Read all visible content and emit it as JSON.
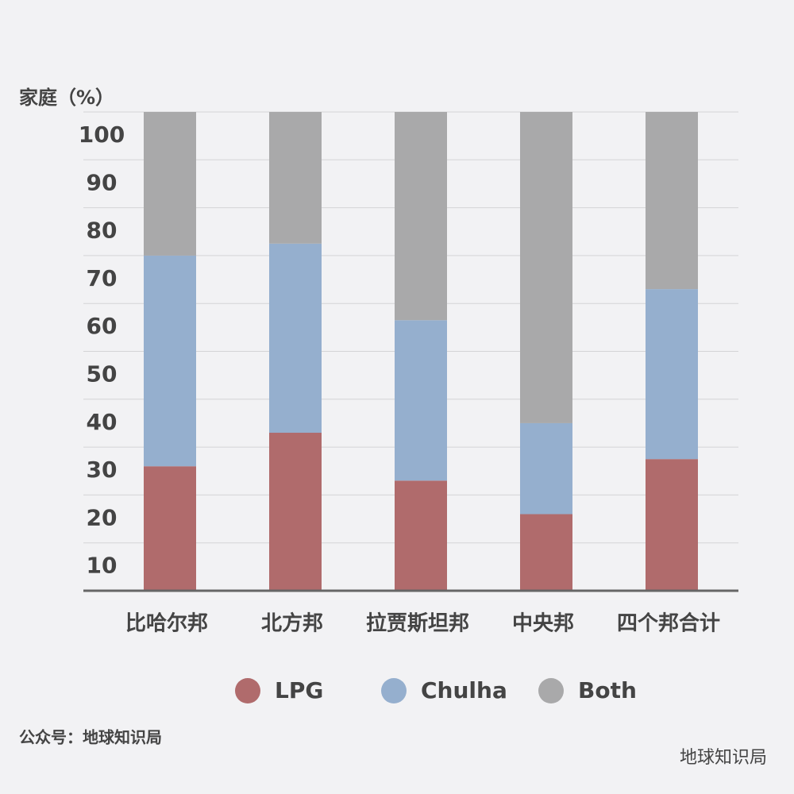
{
  "chart_data": {
    "type": "stacked_bar",
    "y_label": "家庭（%）",
    "categories": [
      "比哈尔邦",
      "北方邦",
      "拉贾斯坦邦",
      "中央邦",
      "四个邦合计"
    ],
    "series": [
      {
        "name": "LPG",
        "color": "#b06b6c",
        "values": [
          26,
          33,
          23,
          16,
          27.5
        ]
      },
      {
        "name": "Chulha",
        "color": "#95afce",
        "values": [
          44,
          39.5,
          33.5,
          19,
          35.5
        ]
      },
      {
        "name": "Both",
        "color": "#a9a9aa",
        "values": [
          30,
          27.5,
          43.5,
          65,
          37
        ]
      }
    ],
    "ylim": [
      0,
      100
    ],
    "yticks": [
      10,
      20,
      30,
      40,
      50,
      60,
      70,
      80,
      90,
      100
    ],
    "grid": true,
    "source": "公众号：地球知识局",
    "watermark": "地球知识局"
  }
}
